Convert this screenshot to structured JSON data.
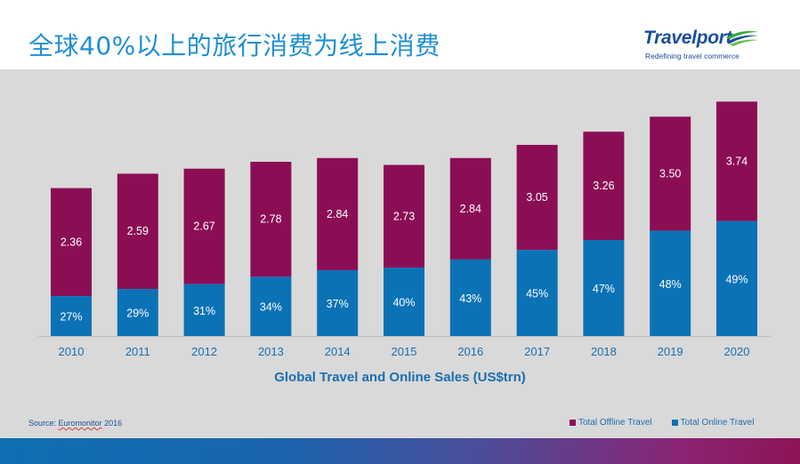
{
  "slide": {
    "title": "全球40%以上的旅行消费为线上消费",
    "source_prefix": "Source: ",
    "source_name": "Euromonitor",
    "source_year": " 2016"
  },
  "logo": {
    "name": "Travelport",
    "tagline": "Redefining travel commerce"
  },
  "colors": {
    "offline": "#8b0e55",
    "online": "#0b72b5",
    "text_accent": "#1a6eb0"
  },
  "chart_data": {
    "type": "bar",
    "stacked": true,
    "title": "",
    "xlabel": "Global Travel and Online Sales (US$trn)",
    "ylabel": "",
    "categories": [
      "2010",
      "2011",
      "2012",
      "2013",
      "2014",
      "2015",
      "2016",
      "2017",
      "2018",
      "2019",
      "2020"
    ],
    "series": [
      {
        "name": "Total Online Travel",
        "labels": [
          "27%",
          "29%",
          "31%",
          "34%",
          "37%",
          "40%",
          "43%",
          "45%",
          "47%",
          "48%",
          "49%"
        ],
        "online_share_pct": [
          27,
          29,
          31,
          34,
          37,
          40,
          43,
          45,
          47,
          48,
          49
        ]
      },
      {
        "name": "Total Offline Travel",
        "labels": [
          "2.36",
          "2.59",
          "2.67",
          "2.78",
          "2.84",
          "2.73",
          "2.84",
          "3.05",
          "3.26",
          "3.50",
          "3.74"
        ],
        "total_value": [
          2.36,
          2.59,
          2.67,
          2.78,
          2.84,
          2.73,
          2.84,
          3.05,
          3.26,
          3.5,
          3.74
        ]
      }
    ],
    "legend": [
      "Total Offline Travel",
      "Total Online Travel"
    ],
    "legend_position": "bottom-right",
    "grid": false
  }
}
